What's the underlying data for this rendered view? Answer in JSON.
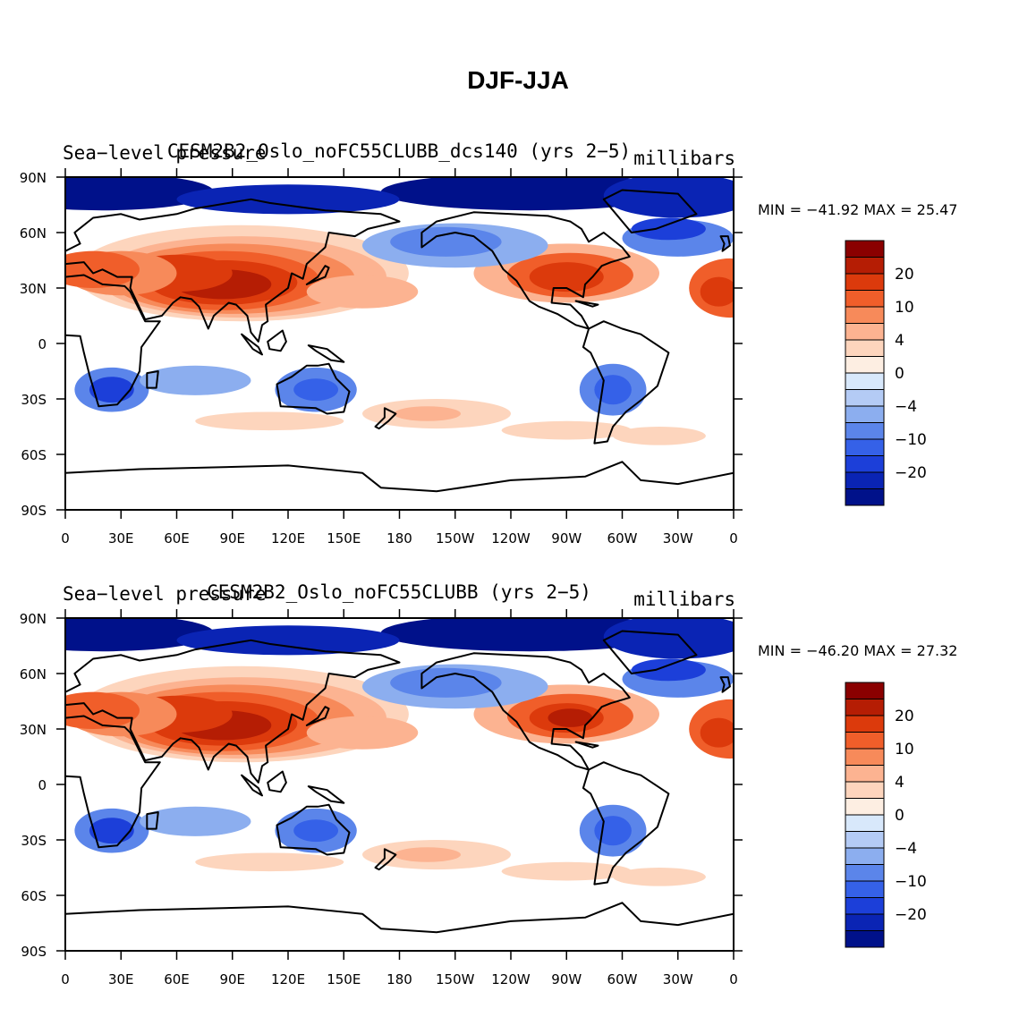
{
  "chart_data": {
    "type": "map",
    "title": "DJF-JJA",
    "units": "millibars",
    "x_ticks": [
      "0",
      "30E",
      "60E",
      "90E",
      "120E",
      "150E",
      "180",
      "150W",
      "120W",
      "90W",
      "60W",
      "30W",
      "0"
    ],
    "y_ticks": [
      "90N",
      "60N",
      "30N",
      "0",
      "30S",
      "60S",
      "90S"
    ],
    "colorbar_labels": [
      "20",
      "10",
      "4",
      "0",
      "−4",
      "−10",
      "−20"
    ],
    "colorbar_colors": [
      "#8a0000",
      "#b51d04",
      "#dc3a0c",
      "#f05e2a",
      "#f78a5a",
      "#fcb391",
      "#fdd5bd",
      "#fdeee2",
      "#d8e8fb",
      "#b4cbf5",
      "#8caeef",
      "#5b85ea",
      "#3561e8",
      "#1c3fd9",
      "#0a24b4",
      "#00118a"
    ],
    "panels": [
      {
        "left_title": "Sea−level pressure",
        "center_title": "CESM2B2_Oslo_noFC55CLUBB_dcs140 (yrs 2−5)",
        "units": "millibars",
        "min_max": "MIN = −41.92  MAX =  25.47"
      },
      {
        "left_title": "Sea−level pressure",
        "center_title": "CESM2B2_Oslo_noFC55CLUBB (yrs 2−5)",
        "units": "millibars",
        "min_max": "MIN = −46.20  MAX =  27.32"
      }
    ]
  }
}
